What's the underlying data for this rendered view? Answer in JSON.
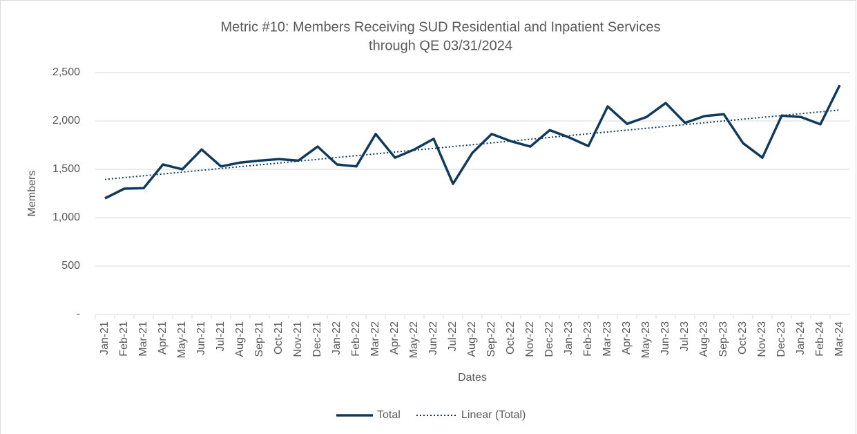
{
  "chart_data": {
    "type": "line",
    "title": "Metric #10: Members Receiving SUD Residential and Inpatient Services",
    "subtitle": "through QE 03/31/2024",
    "x_label": "Dates",
    "y_label": "Members",
    "categories": [
      "Jan-21",
      "Feb-21",
      "Mar-21",
      "Apr-21",
      "May-21",
      "Jun-21",
      "Jul-21",
      "Aug-21",
      "Sep-21",
      "Oct-21",
      "Nov-21",
      "Dec-21",
      "Jan-22",
      "Feb-22",
      "Mar-22",
      "Apr-22",
      "May-22",
      "Jun-22",
      "Jul-22",
      "Aug-22",
      "Sep-22",
      "Oct-22",
      "Nov-22",
      "Dec-22",
      "Jan-23",
      "Feb-23",
      "Mar-23",
      "Apr-23",
      "May-23",
      "Jun-23",
      "Jul-23",
      "Aug-23",
      "Sep-23",
      "Oct-23",
      "Nov-23",
      "Dec-23",
      "Jan-24",
      "Feb-24",
      "Mar-24"
    ],
    "series": [
      {
        "name": "Total",
        "color": "#0e3a5e",
        "values": [
          1200,
          1300,
          1305,
          1550,
          1500,
          1705,
          1530,
          1570,
          1590,
          1605,
          1590,
          1735,
          1550,
          1530,
          1865,
          1620,
          1705,
          1815,
          1350,
          1670,
          1865,
          1790,
          1735,
          1905,
          1830,
          1740,
          2150,
          1970,
          2040,
          2185,
          1980,
          2050,
          2070,
          1770,
          1620,
          2055,
          2040,
          1965,
          2370
        ]
      }
    ],
    "trendline": {
      "name": "Linear (Total)",
      "type": "linear",
      "color": "#0e3a5e"
    },
    "ylim": [
      0,
      2500
    ],
    "yticks": [
      {
        "value": 0,
        "label": "-"
      },
      500,
      {
        "value": 1000,
        "label": "1,000"
      },
      {
        "value": 1500,
        "label": "1,500"
      },
      {
        "value": 2000,
        "label": "2,000"
      },
      {
        "value": 2500,
        "label": "2,500"
      }
    ],
    "grid": true,
    "legend": "bottom"
  }
}
